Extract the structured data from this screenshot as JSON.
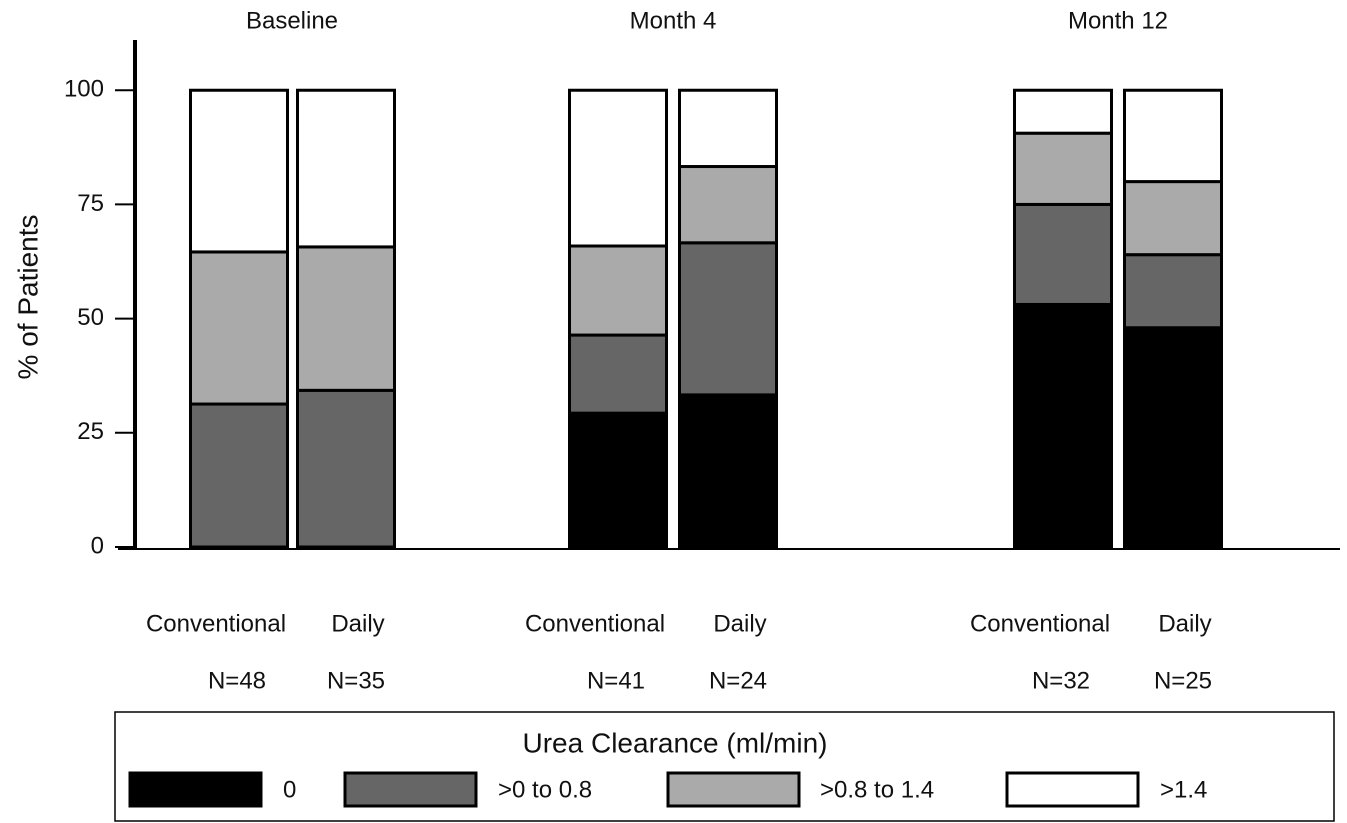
{
  "chart_data": {
    "type": "stacked-bar",
    "group_titles": [
      "Baseline",
      "Month 4",
      "Month 12"
    ],
    "categories": [
      "Conventional",
      "Daily",
      "Conventional",
      "Daily",
      "Conventional",
      "Daily"
    ],
    "n_labels": [
      "N=48",
      "N=35",
      "N=41",
      "N=24",
      "N=32",
      "N=25"
    ],
    "y_label": "% of Patients",
    "ylim": [
      0,
      111
    ],
    "yticks": [
      0,
      25,
      50,
      75,
      100
    ],
    "legend_title": "Urea Clearance (ml/min)",
    "series": [
      {
        "name": "0",
        "color": "#000000",
        "values": [
          0,
          0,
          29.3,
          33.3,
          53.1,
          48
        ]
      },
      {
        "name": ">0 to 0.8",
        "color": "#666666",
        "values": [
          31.3,
          34.3,
          17.1,
          33.3,
          21.9,
          16
        ]
      },
      {
        "name": ">0.8 to 1.4",
        "color": "#aaaaaa",
        "values": [
          33.3,
          31.4,
          19.5,
          16.7,
          15.6,
          16
        ]
      },
      {
        "name": ">1.4",
        "color": "#ffffff",
        "values": [
          35.4,
          34.3,
          34.1,
          16.7,
          9.4,
          20
        ]
      }
    ]
  }
}
